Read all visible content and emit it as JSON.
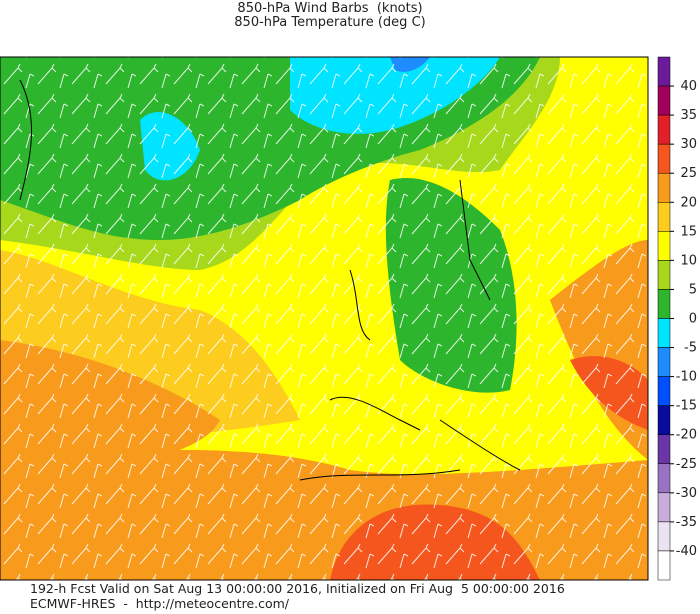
{
  "header": {
    "lines": [
      "850-hPa Wind Barbs  (knots)",
      "850-hPa Temperature (deg C)"
    ]
  },
  "colorbar": {
    "ticks": [
      40,
      35,
      30,
      25,
      20,
      15,
      10,
      5,
      0,
      -5,
      -10,
      -15,
      -20,
      -25,
      -30,
      -35,
      -40
    ],
    "colors": [
      "#6c1a9c",
      "#a3005c",
      "#e2202a",
      "#f4561e",
      "#f89a1c",
      "#fccc1e",
      "#ffff00",
      "#a8d81c",
      "#2eb52e",
      "#00e4ff",
      "#1e8cff",
      "#0050ff",
      "#0a0a9c",
      "#6a35a6",
      "#9a72c4",
      "#c9aedd",
      "#ebe3f2",
      "#ffffff"
    ]
  },
  "footer": {
    "lines": [
      "192-h Fcst Valid on Sat Aug 13 00:00:00 2016, Initialized on Fri Aug  5 00:00:00 2016",
      "ECMWF-HRES  -  http://meteocentre.com/"
    ]
  }
}
